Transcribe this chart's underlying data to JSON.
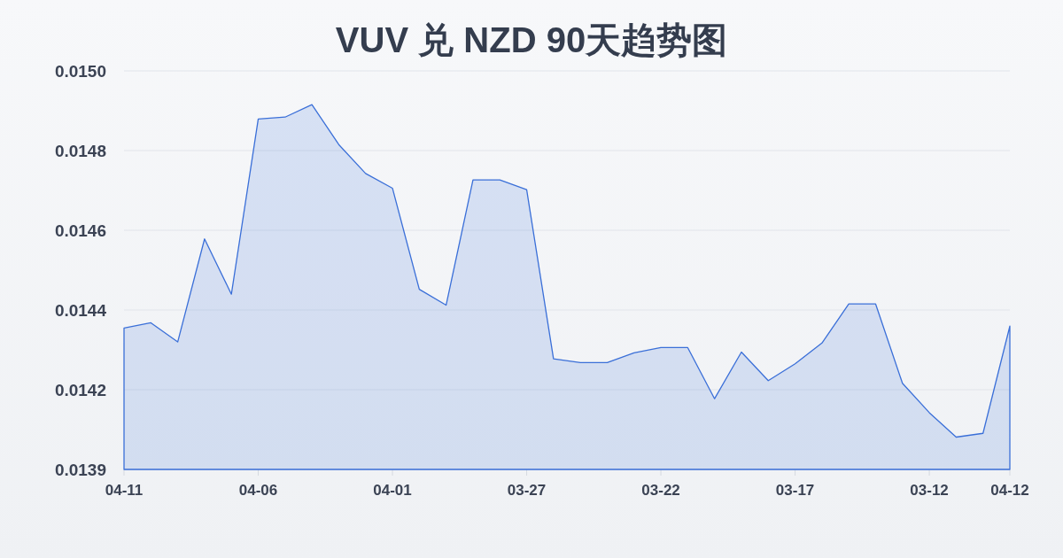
{
  "chart_data": {
    "type": "area",
    "title": "VUV 兑 NZD 90天趋势图",
    "categories": [
      "04-11",
      null,
      null,
      null,
      null,
      "04-06",
      null,
      null,
      null,
      null,
      "04-01",
      null,
      null,
      null,
      null,
      "03-27",
      null,
      null,
      null,
      null,
      "03-22",
      null,
      null,
      null,
      null,
      "03-17",
      null,
      null,
      null,
      null,
      "03-12",
      null,
      null,
      "04-12"
    ],
    "series": [
      {
        "color": "#3a6fd8",
        "values": [
          0.014316,
          0.01433,
          0.014279,
          0.014553,
          0.014406,
          0.014872,
          0.014877,
          0.01491,
          0.014804,
          0.014727,
          0.014688,
          0.014419,
          0.014377,
          0.01471,
          0.01471,
          0.014684,
          0.014234,
          0.014224,
          0.014224,
          0.01425,
          0.014264,
          0.014264,
          0.014128,
          0.014252,
          0.014176,
          0.014221,
          0.014276,
          0.01438,
          0.01438,
          0.014169,
          0.014091,
          0.014026,
          0.014036,
          0.014321
        ]
      }
    ],
    "ylim": [
      0.01394,
      0.015
    ],
    "yticks": [
      {
        "value": 0.01394,
        "label": "0.0139"
      },
      {
        "value": 0.014152,
        "label": "0.0142"
      },
      {
        "value": 0.014364,
        "label": "0.0144"
      },
      {
        "value": 0.014576,
        "label": "0.0146"
      },
      {
        "value": 0.014788,
        "label": "0.0148"
      },
      {
        "value": 0.015,
        "label": "0.0150"
      }
    ],
    "grid": "y",
    "line_style": "solid"
  }
}
